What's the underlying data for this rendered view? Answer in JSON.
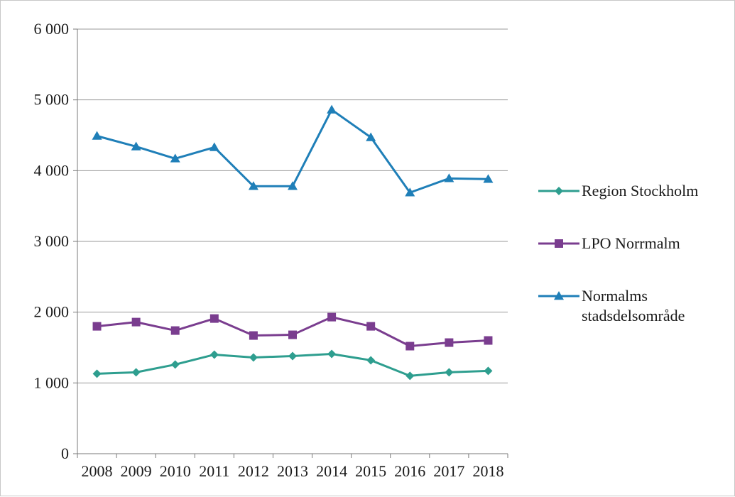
{
  "chart_data": {
    "type": "line",
    "categories": [
      "2008",
      "2009",
      "2010",
      "2011",
      "2012",
      "2013",
      "2014",
      "2015",
      "2016",
      "2017",
      "2018"
    ],
    "ylim": [
      0,
      6000
    ],
    "yticks": [
      0,
      1000,
      2000,
      3000,
      4000,
      5000,
      6000
    ],
    "ytick_labels": [
      "0",
      "1 000",
      "2 000",
      "3 000",
      "4 000",
      "5 000",
      "6 000"
    ],
    "grid": "horizontal",
    "legend_position": "right",
    "series": [
      {
        "name": "Region Stockholm",
        "color": "#2e9e8f",
        "marker": "diamond",
        "values": [
          1130,
          1150,
          1260,
          1400,
          1360,
          1380,
          1410,
          1320,
          1100,
          1150,
          1170
        ]
      },
      {
        "name": "LPO Norrmalm",
        "color": "#7a3d8f",
        "marker": "square",
        "values": [
          1800,
          1860,
          1740,
          1910,
          1670,
          1680,
          1930,
          1800,
          1520,
          1570,
          1600
        ]
      },
      {
        "name": "Normalms stadsdelsområde",
        "legend_lines": [
          "Normalms",
          "stadsdelsområde"
        ],
        "color": "#1f7fb8",
        "marker": "triangle",
        "values": [
          4490,
          4340,
          4170,
          4330,
          3780,
          3780,
          4860,
          4470,
          3690,
          3890,
          3880
        ]
      }
    ]
  }
}
